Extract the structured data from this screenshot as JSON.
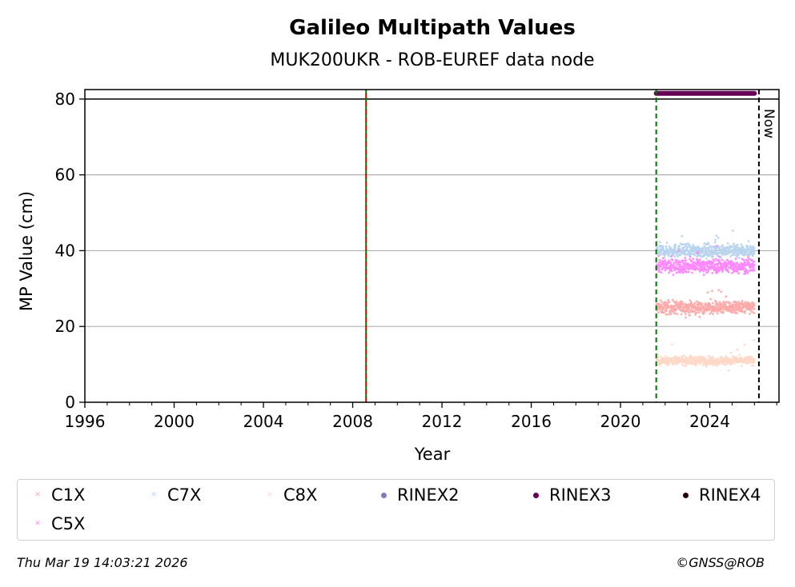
{
  "chart_data": {
    "type": "scatter",
    "title": "Galileo Multipath Values",
    "subtitle": "MUK200UKR - ROB-EUREF data node",
    "xlabel": "Year",
    "ylabel": "MP Value (cm)",
    "xlim": [
      1996,
      2027.1
    ],
    "ylim": [
      0,
      82.5
    ],
    "x_ticks": [
      "1996",
      "2000",
      "2004",
      "2008",
      "2012",
      "2016",
      "2020",
      "2024"
    ],
    "y_ticks": [
      "0",
      "20",
      "40",
      "60",
      "80"
    ],
    "grid": "horizontal",
    "series": [
      {
        "name": "C1X",
        "color": "#ffaaaa",
        "marker": "x",
        "x_range": [
          2021.6,
          2026.0
        ],
        "mean": 25,
        "spread": 1.2
      },
      {
        "name": "C7X",
        "color": "#b8d4ee",
        "marker": "x",
        "x_range": [
          2021.6,
          2026.0
        ],
        "mean": 40,
        "spread": 1.2
      },
      {
        "name": "C8X",
        "color": "#ffd8c8",
        "marker": "x",
        "x_range": [
          2021.6,
          2026.0
        ],
        "mean": 11,
        "spread": 0.8
      },
      {
        "name": "C5X",
        "color": "#ff88ff",
        "marker": "x",
        "x_range": [
          2021.6,
          2026.0
        ],
        "mean": 36,
        "spread": 1.3
      }
    ],
    "rinex_series": [
      {
        "name": "RINEX2",
        "color": "#8877bb"
      },
      {
        "name": "RINEX3",
        "color": "#660055",
        "y": 81.5,
        "x_range": [
          2021.6,
          2026.0
        ]
      },
      {
        "name": "RINEX4",
        "color": "#220011"
      }
    ],
    "reference_line_y": 80,
    "vertical_lines": [
      {
        "x": 2008.6,
        "colors": [
          "#007700",
          "#cc0000"
        ],
        "style": "dashed"
      },
      {
        "x": 2021.6,
        "colors": [
          "#007700"
        ],
        "style": "dashed"
      },
      {
        "x": 2026.2,
        "colors": [
          "#000000"
        ],
        "style": "dashed",
        "label": "Now"
      }
    ],
    "legend_position": "bottom"
  },
  "legend": [
    {
      "label": "C1X",
      "color": "#ffaaaa",
      "marker": "x"
    },
    {
      "label": "C7X",
      "color": "#b8d4ee",
      "marker": "x"
    },
    {
      "label": "C8X",
      "color": "#ffd8c8",
      "marker": "x"
    },
    {
      "label": "RINEX2",
      "color": "#8877bb",
      "marker": "dot"
    },
    {
      "label": "RINEX3",
      "color": "#660055",
      "marker": "dot"
    },
    {
      "label": "RINEX4",
      "color": "#220011",
      "marker": "dot"
    },
    {
      "label": "C5X",
      "color": "#ff88ff",
      "marker": "x"
    }
  ],
  "footer": {
    "timestamp": "Thu Mar 19 14:03:21 2026",
    "copyright": "©GNSS@ROB"
  }
}
